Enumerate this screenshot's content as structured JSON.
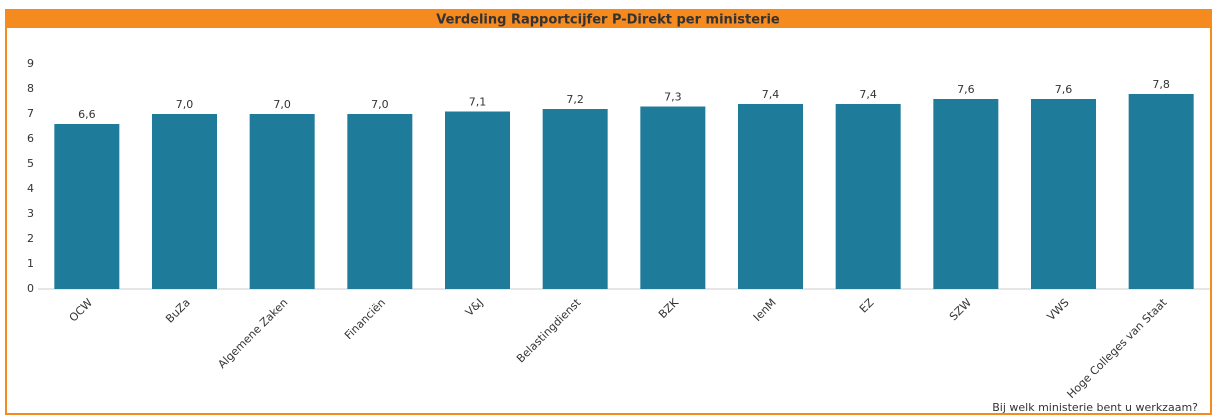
{
  "chart_data": {
    "type": "bar",
    "title": "Verdeling Rapportcijfer P-Direkt per ministerie",
    "x_label": "Bij welk ministerie bent u werkzaam?",
    "categories": [
      "OCW",
      "BuZa",
      "Algemene Zaken",
      "Financiën",
      "V&J",
      "Belastingdienst",
      "BZK",
      "IenM",
      "EZ",
      "SZW",
      "VWS",
      "Hoge Colleges van Staat"
    ],
    "values": [
      6.6,
      7.0,
      7.0,
      7.0,
      7.1,
      7.2,
      7.3,
      7.4,
      7.4,
      7.6,
      7.6,
      7.8
    ],
    "value_labels": [
      "6,6",
      "7,0",
      "7,0",
      "7,0",
      "7,1",
      "7,2",
      "7,3",
      "7,4",
      "7,4",
      "7,6",
      "7,6",
      "7,8"
    ],
    "color": "#1f7b9a",
    "ylim": [
      0,
      9
    ],
    "yticks": [
      0,
      1,
      2,
      3,
      4,
      5,
      6,
      7,
      8,
      9
    ],
    "grid": false
  }
}
